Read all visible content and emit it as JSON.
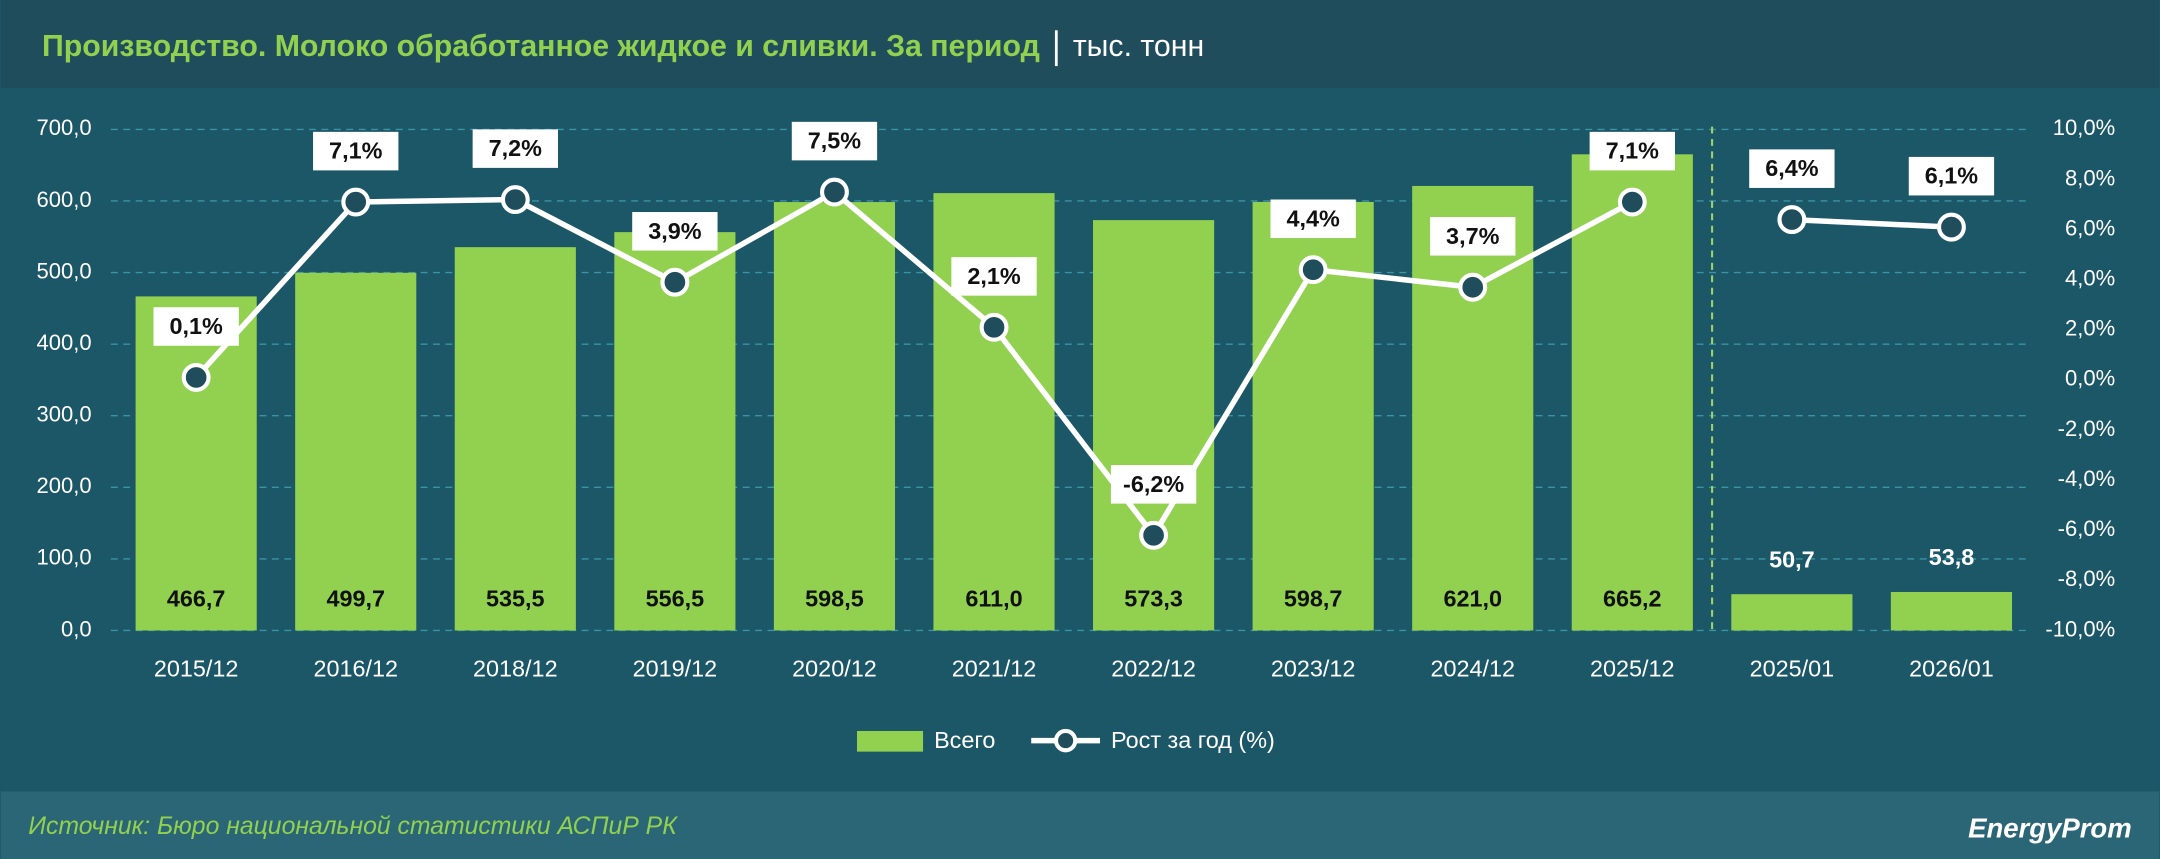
{
  "chart_data": {
    "type": "bar_line",
    "title": "Производство. Молоко обработанное жидкое и сливки. За период",
    "subtitle": "тыс. тонн",
    "source": "Источник: Бюро национальной статистики АСПиР РК",
    "brand": "EnergyProm",
    "categories": [
      "2015/12",
      "2016/12",
      "2018/12",
      "2019/12",
      "2020/12",
      "2021/12",
      "2022/12",
      "2023/12",
      "2024/12",
      "2025/12",
      "2025/01",
      "2026/01"
    ],
    "segments": [
      10,
      2
    ],
    "series": [
      {
        "name": "Всего",
        "type": "bar",
        "color": "#92d050",
        "values": [
          466.7,
          499.7,
          535.5,
          556.5,
          598.5,
          611.0,
          573.3,
          598.7,
          621.0,
          665.2,
          50.7,
          53.8
        ],
        "value_labels": [
          "466,7",
          "499,7",
          "535,5",
          "556,5",
          "598,5",
          "611,0",
          "573,3",
          "598,7",
          "621,0",
          "665,2",
          "50,7",
          "53,8"
        ]
      },
      {
        "name": "Рост за год (%)",
        "type": "line",
        "axis": "y2",
        "color": "#ffffff",
        "values": [
          0.1,
          7.1,
          7.2,
          3.9,
          7.5,
          2.1,
          -6.2,
          4.4,
          3.7,
          7.1,
          6.4,
          6.1
        ],
        "value_labels": [
          "0,1%",
          "7,1%",
          "7,2%",
          "3,9%",
          "7,5%",
          "2,1%",
          "-6,2%",
          "4,4%",
          "3,7%",
          "7,1%",
          "6,4%",
          "6,1%"
        ]
      }
    ],
    "ylim": [
      0,
      700
    ],
    "yticks": [
      {
        "value": 0,
        "label": "0,0"
      },
      {
        "value": 100,
        "label": "100,0"
      },
      {
        "value": 200,
        "label": "200,0"
      },
      {
        "value": 300,
        "label": "300,0"
      },
      {
        "value": 400,
        "label": "400,0"
      },
      {
        "value": 500,
        "label": "500,0"
      },
      {
        "value": 600,
        "label": "600,0"
      },
      {
        "value": 700,
        "label": "700,0"
      }
    ],
    "y2lim": [
      -10,
      10
    ],
    "y2ticks": [
      {
        "value": -10,
        "label": "-10,0%"
      },
      {
        "value": -8,
        "label": "-8,0%"
      },
      {
        "value": -6,
        "label": "-6,0%"
      },
      {
        "value": -4,
        "label": "-4,0%"
      },
      {
        "value": -2,
        "label": "-2,0%"
      },
      {
        "value": 0,
        "label": "0,0%"
      },
      {
        "value": 2,
        "label": "2,0%"
      },
      {
        "value": 4,
        "label": "4,0%"
      },
      {
        "value": 6,
        "label": "6,0%"
      },
      {
        "value": 8,
        "label": "8,0%"
      },
      {
        "value": 10,
        "label": "10,0%"
      }
    ],
    "grid": true
  }
}
